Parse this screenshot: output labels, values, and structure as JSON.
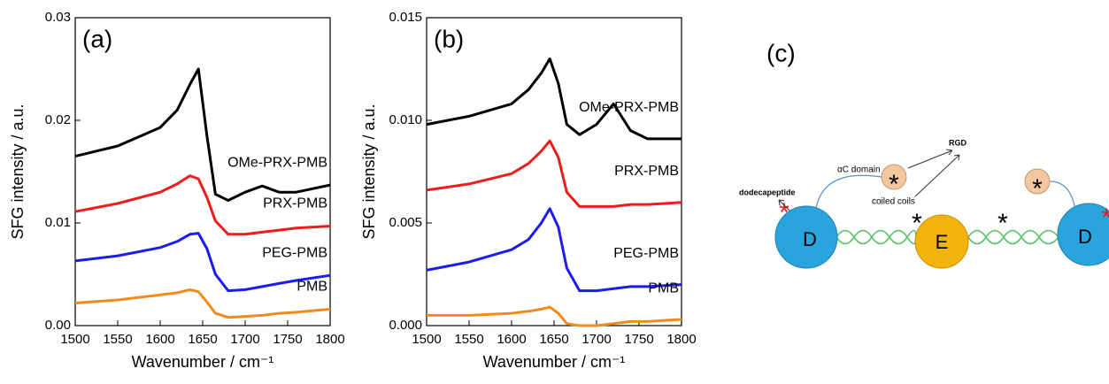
{
  "chart_data": [
    {
      "type": "line",
      "annotation": "(a)",
      "xlabel": "Wavenumber / cm⁻¹",
      "ylabel": "SFG intensity / a.u.",
      "x": [
        1500,
        1550,
        1600,
        1620,
        1635,
        1645,
        1655,
        1665,
        1680,
        1700,
        1720,
        1740,
        1760,
        1800
      ],
      "xlim": [
        1500,
        1800
      ],
      "xticks": [
        1500,
        1550,
        1600,
        1650,
        1700,
        1750,
        1800
      ],
      "ylim": [
        0,
        0.03
      ],
      "yticks": [
        {
          "value": 0,
          "label": "0.00"
        },
        {
          "value": 0.01,
          "label": "0.01"
        },
        {
          "value": 0.02,
          "label": "0.02"
        },
        {
          "value": 0.03,
          "label": "0.03"
        }
      ],
      "series": [
        {
          "name": "OMe-PRX-PMB",
          "color": "#000000",
          "values": [
            0.0165,
            0.0175,
            0.0193,
            0.021,
            0.0235,
            0.025,
            0.0185,
            0.0128,
            0.0122,
            0.013,
            0.0136,
            0.013,
            0.013,
            0.0137
          ]
        },
        {
          "name": "PRX-PMB",
          "color": "#ee1c1c",
          "values": [
            0.0111,
            0.0119,
            0.013,
            0.0138,
            0.0146,
            0.0143,
            0.0125,
            0.0102,
            0.0089,
            0.0089,
            0.0091,
            0.0093,
            0.0095,
            0.0097
          ]
        },
        {
          "name": "PEG-PMB",
          "color": "#1c1cee",
          "values": [
            0.0063,
            0.0068,
            0.0076,
            0.0082,
            0.0089,
            0.009,
            0.0075,
            0.005,
            0.0034,
            0.0035,
            0.0038,
            0.0041,
            0.0044,
            0.0049
          ]
        },
        {
          "name": "PMB",
          "color": "#f28a1c",
          "values": [
            0.0022,
            0.0025,
            0.003,
            0.0032,
            0.0035,
            0.0033,
            0.0023,
            0.0012,
            0.0008,
            0.0009,
            0.001,
            0.0012,
            0.0013,
            0.0016
          ]
        }
      ]
    },
    {
      "type": "line",
      "annotation": "(b)",
      "xlabel": "Wavenumber / cm⁻¹",
      "ylabel": "SFG intensity / a.u.",
      "x": [
        1500,
        1550,
        1600,
        1620,
        1635,
        1645,
        1655,
        1665,
        1680,
        1700,
        1720,
        1740,
        1760,
        1800
      ],
      "xlim": [
        1500,
        1800
      ],
      "xticks": [
        1500,
        1550,
        1600,
        1650,
        1700,
        1750,
        1800
      ],
      "ylim": [
        0,
        0.015
      ],
      "yticks": [
        {
          "value": 0,
          "label": "0.000"
        },
        {
          "value": 0.005,
          "label": "0.005"
        },
        {
          "value": 0.01,
          "label": "0.010"
        },
        {
          "value": 0.015,
          "label": "0.015"
        }
      ],
      "series": [
        {
          "name": "OMe-PRX-PMB",
          "color": "#000000",
          "values": [
            0.0098,
            0.0102,
            0.0108,
            0.0115,
            0.0123,
            0.013,
            0.0118,
            0.0098,
            0.0093,
            0.0098,
            0.0108,
            0.0095,
            0.0091,
            0.0091
          ]
        },
        {
          "name": "PRX-PMB",
          "color": "#ee1c1c",
          "values": [
            0.0066,
            0.0069,
            0.0074,
            0.0079,
            0.0085,
            0.009,
            0.0082,
            0.0065,
            0.0058,
            0.0058,
            0.0058,
            0.0059,
            0.0059,
            0.006
          ]
        },
        {
          "name": "PEG-PMB",
          "color": "#1c1cee",
          "values": [
            0.0027,
            0.0031,
            0.0037,
            0.0042,
            0.005,
            0.0057,
            0.0048,
            0.0028,
            0.0017,
            0.0017,
            0.0018,
            0.0019,
            0.0019,
            0.002
          ]
        },
        {
          "name": "PMB",
          "color": "#f28a1c",
          "values": [
            0.0005,
            0.0005,
            0.0006,
            0.0007,
            0.0008,
            0.0009,
            0.0006,
            0.0001,
            0,
            0,
            0.0001,
            0.0002,
            0.0002,
            0.0003
          ]
        }
      ]
    }
  ],
  "diagram": {
    "label": "(c)",
    "domain": "αC domain",
    "rgd": "RGD",
    "peptide": "dodecapeptide",
    "coils": "coiled coils",
    "nodes": [
      "D",
      "E",
      "D"
    ]
  }
}
